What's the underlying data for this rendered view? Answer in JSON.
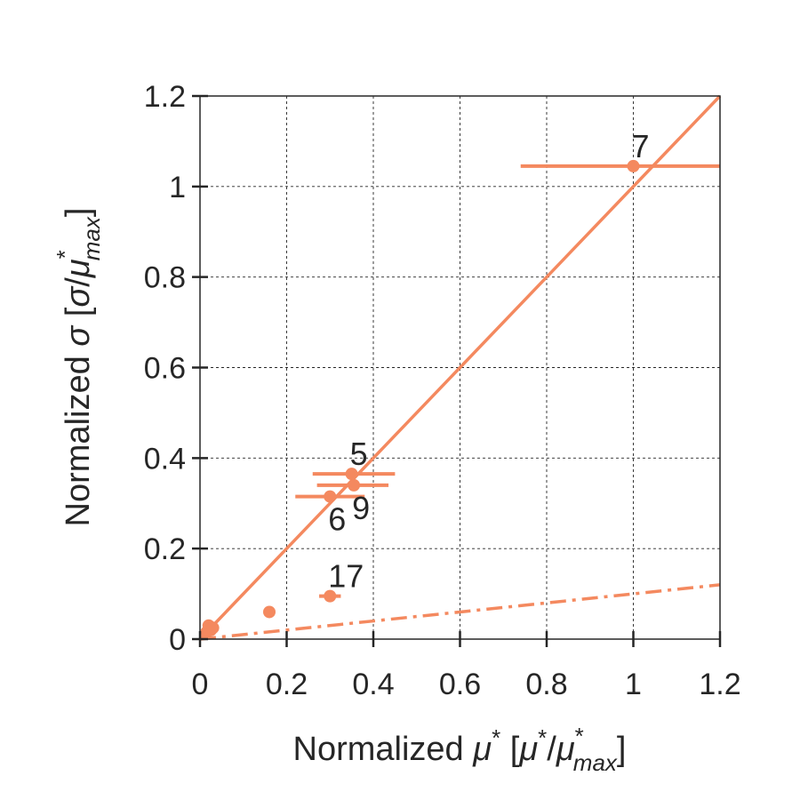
{
  "chart_data": {
    "type": "scatter",
    "title": "",
    "xlabel": {
      "prefix": "Normalized ",
      "sym": "μ",
      "sup": "*",
      "space": "  ",
      "bracket_open": "[",
      "num_sym": "μ",
      "num_sup": "*",
      "slash": "/",
      "den_sym": "μ",
      "den_sup": "*",
      "den_sub": "max",
      "bracket_close": "]"
    },
    "ylabel": {
      "prefix": "Normalized ",
      "sym": "σ",
      "space": " ",
      "bracket_open": "[",
      "num_sym": "σ",
      "slash": "/",
      "den_sym": "μ",
      "den_sup": "*",
      "den_sub": "max",
      "bracket_close": "]"
    },
    "xlim": [
      0,
      1.2
    ],
    "ylim": [
      0,
      1.2
    ],
    "xticks": [
      0,
      0.2,
      0.4,
      0.6,
      0.8,
      1,
      1.2
    ],
    "yticks": [
      0,
      0.2,
      0.4,
      0.6,
      0.8,
      1,
      1.2
    ],
    "xtick_labels": [
      "0",
      "0.2",
      "0.4",
      "0.6",
      "0.8",
      "1",
      "1.2"
    ],
    "ytick_labels": [
      "0",
      "0.2",
      "0.4",
      "0.6",
      "0.8",
      "1",
      "1.2"
    ],
    "grid": true,
    "color": "#f4895f",
    "points": [
      {
        "x": 1.0,
        "y": 1.045,
        "xerr": [
          0.74,
          1.2
        ],
        "label": "7",
        "label_pos": "above"
      },
      {
        "x": 0.35,
        "y": 0.365,
        "xerr": [
          0.26,
          0.45
        ],
        "label": "5",
        "label_pos": "above"
      },
      {
        "x": 0.355,
        "y": 0.34,
        "xerr": [
          0.27,
          0.435
        ],
        "label": "9",
        "label_pos": "below"
      },
      {
        "x": 0.3,
        "y": 0.315,
        "xerr": [
          0.22,
          0.38
        ],
        "label": "6",
        "label_pos": "below"
      },
      {
        "x": 0.3,
        "y": 0.095,
        "xerr": [
          0.275,
          0.325
        ],
        "label": "17",
        "label_pos": "above"
      },
      {
        "x": 0.16,
        "y": 0.06,
        "label": ""
      },
      {
        "x": 0.02,
        "y": 0.03,
        "label": ""
      },
      {
        "x": 0.025,
        "y": 0.02,
        "label": ""
      },
      {
        "x": 0.015,
        "y": 0.015,
        "label": ""
      },
      {
        "x": 0.03,
        "y": 0.025,
        "label": ""
      }
    ],
    "reference_lines": [
      {
        "style": "solid",
        "x": [
          0,
          1.2
        ],
        "y": [
          0,
          1.2
        ]
      },
      {
        "style": "dashdot",
        "x": [
          0,
          1.2
        ],
        "y": [
          0,
          0.12
        ]
      }
    ]
  }
}
